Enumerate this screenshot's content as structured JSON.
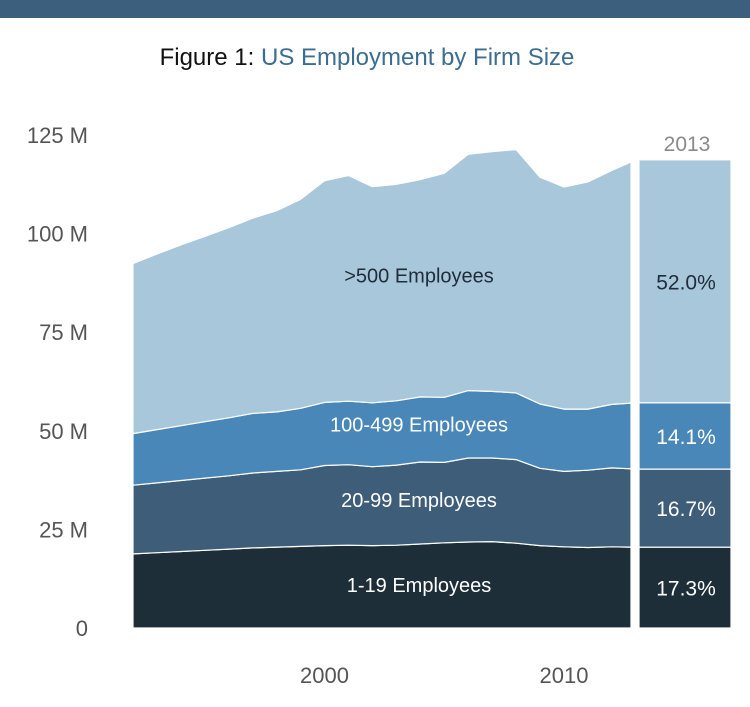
{
  "colors": {
    "banner": "#3b5f7c",
    "title_prefix": "#111111",
    "title_main": "#3b6e8f",
    "axis_text": "#555555",
    "inset_year": "#8a8a8a",
    "label_dark": "#1f2d3a",
    "label_light": "#ffffff"
  },
  "chart_data": {
    "type": "area",
    "stacked": true,
    "title_prefix": "Figure 1:",
    "title": "US Employment by Firm Size",
    "xlabel": "",
    "ylabel": "",
    "xlim": [
      1992,
      2012.8
    ],
    "ylim": [
      0,
      125
    ],
    "y_ticks": [
      0,
      25,
      50,
      75,
      100,
      125
    ],
    "y_tick_labels": [
      "0",
      "25 M",
      "50 M",
      "75 M",
      "100 M",
      "125 M"
    ],
    "x_ticks": [
      2000,
      2010
    ],
    "x_tick_labels": [
      "2000",
      "2010"
    ],
    "grid": false,
    "legend": "none",
    "x": [
      1992,
      1993,
      1994,
      1995,
      1996,
      1997,
      1998,
      1999,
      2000,
      2001,
      2002,
      2003,
      2004,
      2005,
      2006,
      2007,
      2008,
      2009,
      2010,
      2011,
      2012,
      2013
    ],
    "series": [
      {
        "name": "1-19 Employees",
        "color": "#1e2e39",
        "label_color": "#ffffff",
        "values": [
          18.8,
          19.1,
          19.4,
          19.7,
          20.0,
          20.3,
          20.5,
          20.7,
          20.9,
          21.0,
          20.9,
          21.0,
          21.3,
          21.6,
          21.8,
          21.9,
          21.5,
          20.9,
          20.6,
          20.4,
          20.6,
          20.5
        ]
      },
      {
        "name": "20-99 Employees",
        "color": "#3d5d79",
        "label_color": "#ffffff",
        "values": [
          17.4,
          17.7,
          18.0,
          18.3,
          18.6,
          19.0,
          19.2,
          19.4,
          20.3,
          20.4,
          20.0,
          20.3,
          20.8,
          20.4,
          21.3,
          21.2,
          21.2,
          19.6,
          19.1,
          19.6,
          20.0,
          19.8
        ]
      },
      {
        "name": "100-499 Employees",
        "color": "#4887b8",
        "label_color": "#ffffff",
        "values": [
          13.1,
          13.5,
          13.9,
          14.3,
          14.7,
          15.1,
          15.1,
          15.6,
          16.0,
          16.1,
          16.2,
          16.3,
          16.5,
          16.5,
          17.1,
          16.9,
          16.9,
          16.3,
          15.8,
          15.5,
          16.1,
          16.8
        ]
      },
      {
        "name": ">500 Employees",
        "color": "#a8c7da",
        "label_color": "#1f2d3a",
        "values": [
          43.1,
          44.5,
          45.8,
          47.0,
          48.2,
          49.5,
          51.0,
          53.0,
          56.2,
          57.2,
          54.8,
          54.9,
          55.1,
          56.8,
          59.9,
          60.8,
          61.7,
          57.5,
          56.3,
          57.6,
          59.3,
          61.6
        ]
      }
    ],
    "layer_labels": [
      ">500 Employees",
      "100-499 Employees",
      "20-99 Employees",
      "1-19 Employees"
    ],
    "inset": {
      "year_label": "2013",
      "shares": [
        {
          "series": "1-19 Employees",
          "percent_label": "17.3%",
          "value": 17.3
        },
        {
          "series": "20-99 Employees",
          "percent_label": "16.7%",
          "value": 16.7
        },
        {
          "series": "100-499 Employees",
          "percent_label": "14.1%",
          "value": 14.1
        },
        {
          "series": ">500 Employees",
          "percent_label": "52.0%",
          "value": 52.0
        }
      ]
    }
  }
}
